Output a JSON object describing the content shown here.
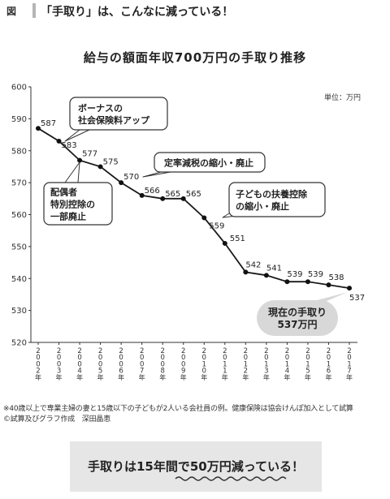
{
  "figure": {
    "tag": "図",
    "title": "「手取り」は、こんなに減っている！"
  },
  "chart_data": {
    "type": "line",
    "title": "給与の額面年収700万円の手取り推移",
    "unit_label": "単位：万円",
    "x": [
      "2002年",
      "2003年",
      "2004年",
      "2005年",
      "2006年",
      "2007年",
      "2008年",
      "2009年",
      "2010年",
      "2011年",
      "2012年",
      "2013年",
      "2014年",
      "2015年",
      "2016年",
      "2017年"
    ],
    "tick_labels": [
      "2002年",
      "2003年",
      "2004年",
      "2005年",
      "2006年",
      "2007年",
      "2008年",
      "2009年",
      "2010年",
      "2011年",
      "2012年",
      "2013年",
      "2014年",
      "2015年",
      "2016年",
      "2017年"
    ],
    "series": [
      {
        "values": [
          587,
          583,
          577,
          575,
          570,
          566,
          565,
          565,
          559,
          551,
          542,
          541,
          539,
          539,
          538,
          537
        ]
      }
    ],
    "ylim": [
      520,
      600
    ],
    "yticks": [
      520,
      530,
      540,
      550,
      560,
      570,
      580,
      590,
      600
    ],
    "grid": false,
    "legend": "none",
    "line_color": "#1a1a1a",
    "annotations": [
      {
        "text": [
          "ボーナスの",
          "社会保険料アップ"
        ]
      },
      {
        "text": [
          "定率減税の縮小・廃止"
        ]
      },
      {
        "text": [
          "配偶者",
          "特別控除の",
          "一部廃止"
        ]
      },
      {
        "text": [
          "子どもの扶養控除",
          "の縮小・廃止"
        ]
      },
      {
        "text": [
          "現在の手取り",
          "537万円"
        ]
      }
    ]
  },
  "notes": [
    "※40歳以上で専業主婦の妻と15歳以下の子どもが2人いる会社員の例。健康保険は協会けんぽ加入として試算",
    "©試算及びグラフ作成　深田晶恵"
  ],
  "summary": {
    "prefix": "手取りは15年間で",
    "emphasis": "50万円",
    "suffix": "減っている！"
  }
}
